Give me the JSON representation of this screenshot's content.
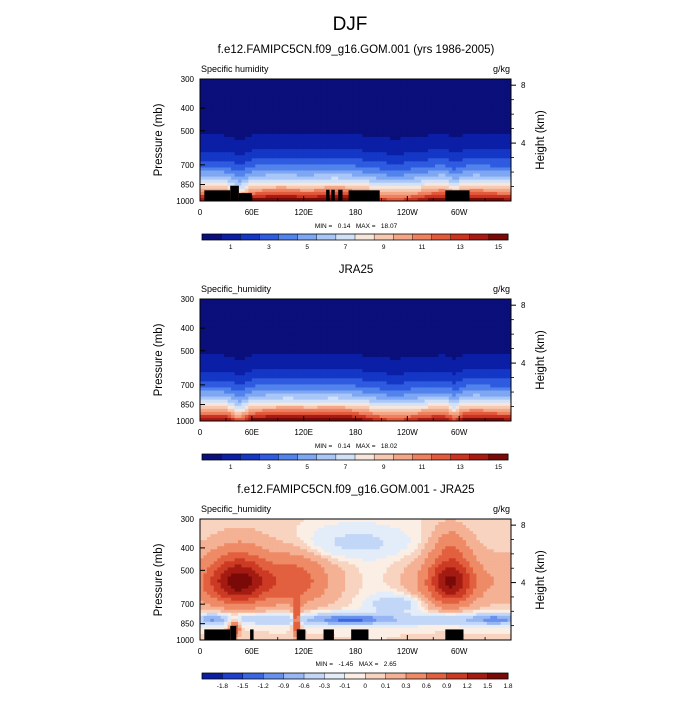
{
  "figure": {
    "title": "DJF"
  },
  "colors": {
    "abs_palette": [
      "#0a0f7a",
      "#0b1ea6",
      "#1537c6",
      "#2e5bdf",
      "#5283ec",
      "#7ea7f3",
      "#a9c6f7",
      "#d1e1f8",
      "#f7e6dc",
      "#f7c9b1",
      "#f4a787",
      "#ee8260",
      "#e2593c",
      "#cc3421",
      "#a81a12",
      "#7a0a08"
    ],
    "diff_palette": [
      "#0a1ea0",
      "#1d3fcc",
      "#3a66e2",
      "#6891ee",
      "#97b6f4",
      "#c2d6f8",
      "#e3ecf9",
      "#fbeee4",
      "#f8d4c0",
      "#f4b194",
      "#ee8a66",
      "#e2603f",
      "#cc3a24",
      "#a41b12",
      "#7a0a08"
    ]
  },
  "chart_data": [
    {
      "type": "heatmap",
      "title": "f.e12.FAMIPC5CN.f09_g16.GOM.001 (yrs 1986-2005)",
      "left_label": "Specific humidity",
      "units": "g/kg",
      "ylabel": "Pressure (mb)",
      "ylabel_right": "Height (km)",
      "x_ticks": [
        "0",
        "60E",
        "120E",
        "180",
        "120W",
        "60W"
      ],
      "x_tick_values": [
        0,
        60,
        120,
        180,
        240,
        300
      ],
      "xlim": [
        0,
        360
      ],
      "y_ticks": [
        "300",
        "400",
        "500",
        "700",
        "850",
        "1000"
      ],
      "y_tick_values": [
        300,
        400,
        500,
        700,
        850,
        1000
      ],
      "ylim": [
        1000,
        300
      ],
      "y_scale": "log",
      "height_ticks": [
        "8",
        "4"
      ],
      "height_tick_values": [
        8,
        4
      ],
      "stats": "MIN =   0.14   MAX =   18.07",
      "colorbar_labels": [
        "1",
        "3",
        "5",
        "7",
        "9",
        "11",
        "13",
        "15"
      ],
      "levels": [
        0,
        1,
        2,
        3,
        4,
        5,
        6,
        7,
        8,
        9,
        10,
        11,
        12,
        13,
        14,
        15,
        16
      ],
      "masked": [
        [
          5,
          35,
          1000,
          900
        ],
        [
          35,
          45,
          1000,
          860
        ],
        [
          45,
          60,
          1000,
          925
        ],
        [
          146,
          150,
          1000,
          895
        ],
        [
          152,
          156,
          1000,
          895
        ],
        [
          160,
          165,
          1000,
          895
        ],
        [
          172,
          208,
          1000,
          900
        ],
        [
          284,
          312,
          1000,
          900
        ]
      ]
    },
    {
      "type": "heatmap",
      "title": "JRA25",
      "left_label": "Specific_humidity",
      "units": "g/kg",
      "ylabel": "Pressure (mb)",
      "ylabel_right": "Height (km)",
      "x_ticks": [
        "0",
        "60E",
        "120E",
        "180",
        "120W",
        "60W"
      ],
      "x_tick_values": [
        0,
        60,
        120,
        180,
        240,
        300
      ],
      "xlim": [
        0,
        360
      ],
      "y_ticks": [
        "300",
        "400",
        "500",
        "700",
        "850",
        "1000"
      ],
      "y_tick_values": [
        300,
        400,
        500,
        700,
        850,
        1000
      ],
      "ylim": [
        1000,
        300
      ],
      "y_scale": "log",
      "height_ticks": [
        "8",
        "4"
      ],
      "height_tick_values": [
        8,
        4
      ],
      "stats": "MIN =   0.14   MAX =   18.02",
      "colorbar_labels": [
        "1",
        "3",
        "5",
        "7",
        "9",
        "11",
        "13",
        "15"
      ],
      "levels": [
        0,
        1,
        2,
        3,
        4,
        5,
        6,
        7,
        8,
        9,
        10,
        11,
        12,
        13,
        14,
        15,
        16
      ],
      "masked": []
    },
    {
      "type": "heatmap",
      "title": "f.e12.FAMIPC5CN.f09_g16.GOM.001 - JRA25",
      "left_label": "Specific_humidity",
      "units": "g/kg",
      "ylabel": "Pressure (mb)",
      "ylabel_right": "Height (km)",
      "x_ticks": [
        "0",
        "60E",
        "120E",
        "180",
        "120W",
        "60W"
      ],
      "x_tick_values": [
        0,
        60,
        120,
        180,
        240,
        300
      ],
      "xlim": [
        0,
        360
      ],
      "y_ticks": [
        "300",
        "400",
        "500",
        "700",
        "850",
        "1000"
      ],
      "y_tick_values": [
        300,
        400,
        500,
        700,
        850,
        1000
      ],
      "ylim": [
        1000,
        300
      ],
      "y_scale": "log",
      "height_ticks": [
        "8",
        "4"
      ],
      "height_tick_values": [
        8,
        4
      ],
      "stats": "MIN =   -1.45   MAX =   2.65",
      "colorbar_labels": [
        "-1.8",
        "-1.5",
        "-1.2",
        "-0.9",
        "-0.6",
        "-0.3",
        "-0.1",
        "0",
        "0.1",
        "0.3",
        "0.6",
        "0.9",
        "1.2",
        "1.5",
        "1.8"
      ],
      "levels": [
        -2.1,
        -1.8,
        -1.5,
        -1.2,
        -0.9,
        -0.6,
        -0.3,
        -0.1,
        0,
        0.1,
        0.3,
        0.6,
        0.9,
        1.2,
        1.5,
        1.8,
        2.1
      ],
      "masked": [
        [
          5,
          35,
          1000,
          900
        ],
        [
          35,
          42,
          1000,
          870
        ],
        [
          58,
          62,
          1000,
          900
        ],
        [
          112,
          122,
          1000,
          900
        ],
        [
          143,
          155,
          1000,
          900
        ],
        [
          175,
          195,
          1000,
          900
        ],
        [
          284,
          305,
          1000,
          900
        ]
      ]
    }
  ]
}
